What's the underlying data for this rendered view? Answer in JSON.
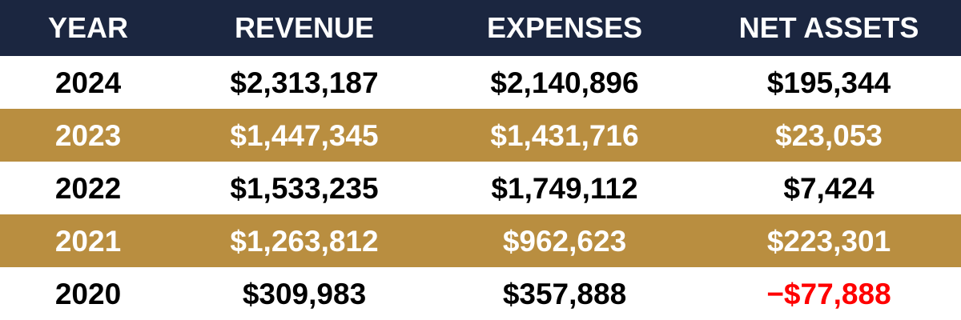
{
  "chart_data": {
    "type": "table",
    "columns": [
      "YEAR",
      "REVENUE",
      "EXPENSES",
      "NET ASSETS"
    ],
    "rows": [
      {
        "year": "2024",
        "revenue": "$2,313,187",
        "expenses": "$2,140,896",
        "net_assets": "$195,344",
        "band": "white",
        "net_negative": false
      },
      {
        "year": "2023",
        "revenue": "$1,447,345",
        "expenses": "$1,431,716",
        "net_assets": "$23,053",
        "band": "gold",
        "net_negative": false
      },
      {
        "year": "2022",
        "revenue": "$1,533,235",
        "expenses": "$1,749,112",
        "net_assets": "$7,424",
        "band": "white",
        "net_negative": false
      },
      {
        "year": "2021",
        "revenue": "$1,263,812",
        "expenses": "$962,623",
        "net_assets": "$223,301",
        "band": "gold",
        "net_negative": false
      },
      {
        "year": "2020",
        "revenue": "$309,983",
        "expenses": "$357,888",
        "net_assets": "−$77,888",
        "band": "white",
        "net_negative": true
      }
    ],
    "values": {
      "revenue": [
        2313187,
        1447345,
        1533235,
        1263812,
        309983
      ],
      "expenses": [
        2140896,
        1431716,
        1749112,
        962623,
        357888
      ],
      "net_assets": [
        195344,
        23053,
        7424,
        223301,
        -77888
      ]
    }
  },
  "colors": {
    "header_bg": "#1b2640",
    "header_text": "#ffffff",
    "gold_band": "#b98e40",
    "gold_text": "#ffffff",
    "white_band": "#ffffff",
    "body_text": "#000000",
    "negative": "#ff0000"
  }
}
